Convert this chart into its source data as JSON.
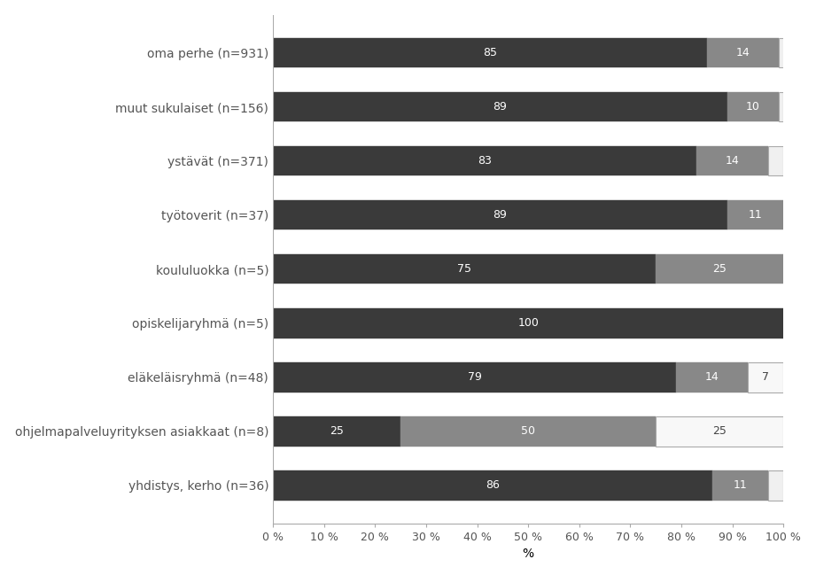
{
  "categories": [
    "oma perhe (n=931)",
    "muut sukulaiset (n=156)",
    "ystävät (n=371)",
    "työtoverit (n=37)",
    "koululuokka (n=5)",
    "opiskelijaryhmä (n=5)",
    "eläkeläisryhmä (n=48)",
    "ohjelmapalveluyrityksen asiakkaat (n=8)",
    "yhdistys, kerho (n=36)"
  ],
  "rows": [
    {
      "segs": [
        85,
        14,
        2
      ],
      "colors": [
        "#3a3a3a",
        "#888888",
        "#f0f0f0"
      ],
      "text_colors": [
        "white",
        "white",
        "#444444"
      ]
    },
    {
      "segs": [
        89,
        10,
        1
      ],
      "colors": [
        "#3a3a3a",
        "#888888",
        "#f0f0f0"
      ],
      "text_colors": [
        "white",
        "white",
        "#444444"
      ]
    },
    {
      "segs": [
        83,
        14,
        3
      ],
      "colors": [
        "#3a3a3a",
        "#888888",
        "#f0f0f0"
      ],
      "text_colors": [
        "white",
        "white",
        "#444444"
      ]
    },
    {
      "segs": [
        89,
        11
      ],
      "colors": [
        "#3a3a3a",
        "#888888"
      ],
      "text_colors": [
        "white",
        "white"
      ]
    },
    {
      "segs": [
        75,
        25
      ],
      "colors": [
        "#3a3a3a",
        "#888888"
      ],
      "text_colors": [
        "white",
        "white"
      ]
    },
    {
      "segs": [
        100
      ],
      "colors": [
        "#3a3a3a"
      ],
      "text_colors": [
        "white"
      ]
    },
    {
      "segs": [
        79,
        14,
        7
      ],
      "colors": [
        "#3a3a3a",
        "#888888",
        "#f8f8f8"
      ],
      "text_colors": [
        "white",
        "white",
        "#444444"
      ]
    },
    {
      "segs": [
        25,
        50,
        25
      ],
      "colors": [
        "#3a3a3a",
        "#888888",
        "#f8f8f8"
      ],
      "text_colors": [
        "white",
        "white",
        "#444444"
      ]
    },
    {
      "segs": [
        86,
        11,
        3
      ],
      "colors": [
        "#3a3a3a",
        "#888888",
        "#f0f0f0"
      ],
      "text_colors": [
        "white",
        "white",
        "#444444"
      ]
    }
  ],
  "xlabel": "%",
  "xlim": [
    0,
    100
  ],
  "xticks": [
    0,
    10,
    20,
    30,
    40,
    50,
    60,
    70,
    80,
    90,
    100
  ],
  "xtick_labels": [
    "0 %",
    "10 %",
    "20 %",
    "30 %",
    "40 %",
    "50 %",
    "60 %",
    "70 %",
    "80 %",
    "90 %",
    "100 %"
  ],
  "background_color": "#ffffff",
  "bar_height": 0.55,
  "fontsize_ticks": 9,
  "fontsize_labels": 10,
  "fontsize_bar": 9,
  "spine_color": "#aaaaaa",
  "tick_color": "#555555"
}
